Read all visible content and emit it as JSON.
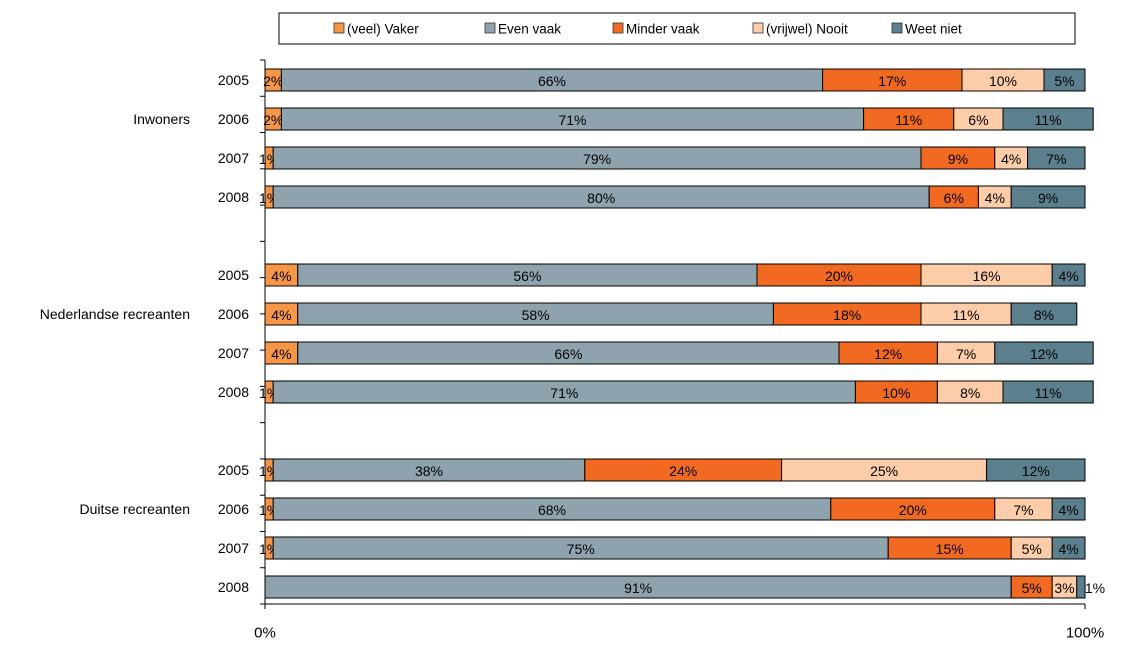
{
  "chart_data": {
    "type": "bar",
    "stacked": "percent",
    "orientation": "horizontal",
    "title": "",
    "xlabel": "",
    "ylabel": "",
    "xlim": [
      0,
      100
    ],
    "x_tick_labels": [
      "0%",
      "100%"
    ],
    "legend_position": "top",
    "groups": [
      {
        "name": "Inwoners",
        "categories": [
          "2005",
          "2006",
          "2007",
          "2008"
        ]
      },
      {
        "name": "Nederlandse recreanten",
        "categories": [
          "2005",
          "2006",
          "2007",
          "2008"
        ]
      },
      {
        "name": "Duitse recreanten",
        "categories": [
          "2005",
          "2006",
          "2007",
          "2008"
        ]
      }
    ],
    "series": [
      {
        "name": "(veel) Vaker",
        "color": "#F79646",
        "values": [
          2,
          2,
          1,
          1,
          4,
          4,
          4,
          1,
          1,
          1,
          1,
          0
        ],
        "labels": [
          "2%",
          "2%",
          "1%",
          "1%",
          "4%",
          "4%",
          "4%",
          "1%",
          "1%",
          "1%",
          "1%",
          ""
        ]
      },
      {
        "name": "Even vaak",
        "color": "#8EA3AE",
        "values": [
          66,
          71,
          79,
          80,
          56,
          58,
          66,
          71,
          38,
          68,
          75,
          91
        ],
        "labels": [
          "66%",
          "71%",
          "79%",
          "80%",
          "56%",
          "58%",
          "66%",
          "71%",
          "38%",
          "68%",
          "75%",
          "91%"
        ]
      },
      {
        "name": "Minder vaak",
        "color": "#F26A21",
        "values": [
          17,
          11,
          9,
          6,
          20,
          18,
          12,
          10,
          24,
          20,
          15,
          5
        ],
        "labels": [
          "17%",
          "11%",
          "9%",
          "6%",
          "20%",
          "18%",
          "12%",
          "10%",
          "24%",
          "20%",
          "15%",
          "5%"
        ]
      },
      {
        "name": "(vrijwel) Nooit",
        "color": "#FCCDA8",
        "values": [
          10,
          6,
          4,
          4,
          16,
          11,
          7,
          8,
          25,
          7,
          5,
          3
        ],
        "labels": [
          "10%",
          "6%",
          "4%",
          "4%",
          "16%",
          "11%",
          "7%",
          "8%",
          "25%",
          "7%",
          "5%",
          "3%"
        ]
      },
      {
        "name": "Weet niet",
        "color": "#5B7F8D",
        "values": [
          5,
          11,
          7,
          9,
          4,
          8,
          12,
          11,
          12,
          4,
          4,
          1
        ],
        "labels": [
          "5%",
          "11%",
          "7%",
          "9%",
          "4%",
          "8%",
          "12%",
          "11%",
          "12%",
          "4%",
          "4%",
          "1%"
        ]
      }
    ]
  }
}
